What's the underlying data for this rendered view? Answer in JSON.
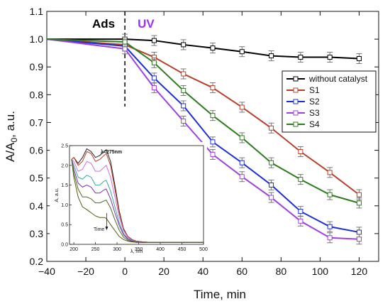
{
  "chart_data": [
    {
      "type": "line",
      "xlabel": "Time, min",
      "ylabel_main": "A/A",
      "ylabel_sub": "0",
      "ylabel_unit": ", a.u.",
      "xlim": [
        -40,
        130
      ],
      "ylim": [
        0.2,
        1.1
      ],
      "xticks": [
        -40,
        -20,
        0,
        20,
        40,
        60,
        80,
        100,
        120
      ],
      "yticks": [
        0.2,
        0.3,
        0.4,
        0.5,
        0.6,
        0.7,
        0.8,
        0.9,
        1.0,
        1.1
      ],
      "xtick_labels": [
        "−40",
        "−20",
        "0",
        "20",
        "40",
        "60",
        "80",
        "100",
        "120"
      ],
      "ytick_labels": [
        "0.2",
        "0.3",
        "0.4",
        "0.5",
        "0.6",
        "0.7",
        "0.8",
        "0.9",
        "1.0",
        "1.1"
      ],
      "phase_labels": {
        "left": "Ads",
        "right": "UV",
        "left_color": "#000000",
        "right_color": "#9b30ff"
      },
      "divider_x": 0,
      "legend_position": "right",
      "series": [
        {
          "name": "without catalyst",
          "color": "#000000",
          "x": [
            -40,
            0,
            15,
            30,
            45,
            60,
            75,
            90,
            105,
            120
          ],
          "y": [
            1.0,
            1.0,
            0.995,
            0.98,
            0.968,
            0.955,
            0.94,
            0.935,
            0.935,
            0.93
          ]
        },
        {
          "name": "S1",
          "color": "#b8402a",
          "x": [
            -40,
            0,
            15,
            30,
            45,
            60,
            75,
            90,
            105,
            120
          ],
          "y": [
            1.0,
            0.98,
            0.935,
            0.875,
            0.825,
            0.755,
            0.68,
            0.595,
            0.52,
            0.44
          ]
        },
        {
          "name": "S2",
          "color": "#1f2fd6",
          "x": [
            -40,
            0,
            15,
            30,
            45,
            60,
            75,
            90,
            105,
            120
          ],
          "y": [
            1.0,
            0.975,
            0.86,
            0.76,
            0.63,
            0.555,
            0.475,
            0.38,
            0.325,
            0.305
          ]
        },
        {
          "name": "S3",
          "color": "#a040e0",
          "x": [
            -40,
            0,
            15,
            30,
            45,
            60,
            75,
            90,
            105,
            120
          ],
          "y": [
            1.0,
            0.965,
            0.825,
            0.705,
            0.585,
            0.505,
            0.43,
            0.345,
            0.285,
            0.28
          ]
        },
        {
          "name": "S4",
          "color": "#2e7d1e",
          "x": [
            -40,
            0,
            15,
            30,
            45,
            60,
            75,
            90,
            105,
            120
          ],
          "y": [
            1.0,
            0.99,
            0.915,
            0.815,
            0.725,
            0.645,
            0.555,
            0.495,
            0.44,
            0.41
          ]
        }
      ]
    },
    {
      "type": "line",
      "annotation": "λ=275nm",
      "arrow_label": "Time",
      "xlabel": "λ, nm",
      "ylabel": "A, a.u.",
      "xlim": [
        190,
        500
      ],
      "ylim": [
        0.0,
        2.5
      ],
      "xticks": [
        200,
        250,
        300,
        350,
        400,
        450,
        500
      ],
      "yticks": [
        0.0,
        0.5,
        1.0,
        1.5,
        2.0,
        2.5
      ],
      "ytick_labels": [
        "0.0",
        "0.5",
        "1.0",
        "1.5",
        "2.0",
        "2.5"
      ],
      "curve_x": [
        195,
        200,
        210,
        220,
        230,
        240,
        250,
        260,
        270,
        275,
        285,
        295,
        305,
        315,
        325,
        335,
        345,
        360,
        380,
        400,
        450,
        500
      ],
      "series": [
        {
          "color": "#222222",
          "y": [
            2.15,
            2.2,
            2.05,
            2.2,
            2.42,
            2.35,
            2.2,
            2.25,
            2.35,
            2.4,
            2.1,
            1.5,
            0.85,
            0.4,
            0.2,
            0.12,
            0.08,
            0.06,
            0.05,
            0.05,
            0.05,
            0.05
          ]
        },
        {
          "color": "#b8402a",
          "y": [
            2.15,
            2.2,
            2.0,
            2.1,
            2.35,
            2.3,
            2.1,
            2.15,
            2.25,
            2.3,
            2.0,
            1.4,
            0.8,
            0.38,
            0.2,
            0.12,
            0.08,
            0.06,
            0.05,
            0.05,
            0.05,
            0.05
          ]
        },
        {
          "color": "#d26dd6",
          "y": [
            2.15,
            2.1,
            1.85,
            1.9,
            2.1,
            2.05,
            1.85,
            1.85,
            1.95,
            2.0,
            1.7,
            1.2,
            0.7,
            0.35,
            0.18,
            0.1,
            0.07,
            0.05,
            0.05,
            0.05,
            0.05,
            0.05
          ]
        },
        {
          "color": "#3aa6a0",
          "y": [
            2.15,
            2.0,
            1.7,
            1.65,
            1.75,
            1.7,
            1.5,
            1.5,
            1.6,
            1.62,
            1.35,
            0.95,
            0.55,
            0.28,
            0.15,
            0.09,
            0.06,
            0.05,
            0.05,
            0.05,
            0.05,
            0.05
          ]
        },
        {
          "color": "#7b2fa8",
          "y": [
            2.15,
            1.9,
            1.55,
            1.45,
            1.5,
            1.45,
            1.3,
            1.3,
            1.38,
            1.4,
            1.15,
            0.8,
            0.48,
            0.24,
            0.13,
            0.08,
            0.06,
            0.05,
            0.05,
            0.05,
            0.05,
            0.05
          ]
        },
        {
          "color": "#4a6d22",
          "y": [
            2.15,
            1.8,
            1.4,
            1.2,
            1.2,
            1.15,
            1.05,
            1.05,
            1.1,
            1.12,
            0.92,
            0.62,
            0.36,
            0.18,
            0.1,
            0.07,
            0.05,
            0.05,
            0.05,
            0.05,
            0.05,
            0.05
          ]
        },
        {
          "color": "#5a5a10",
          "y": [
            2.15,
            1.7,
            1.2,
            0.95,
            0.88,
            0.8,
            0.72,
            0.68,
            0.68,
            0.66,
            0.5,
            0.35,
            0.2,
            0.12,
            0.08,
            0.06,
            0.05,
            0.05,
            0.05,
            0.05,
            0.05,
            0.05
          ]
        }
      ]
    }
  ]
}
